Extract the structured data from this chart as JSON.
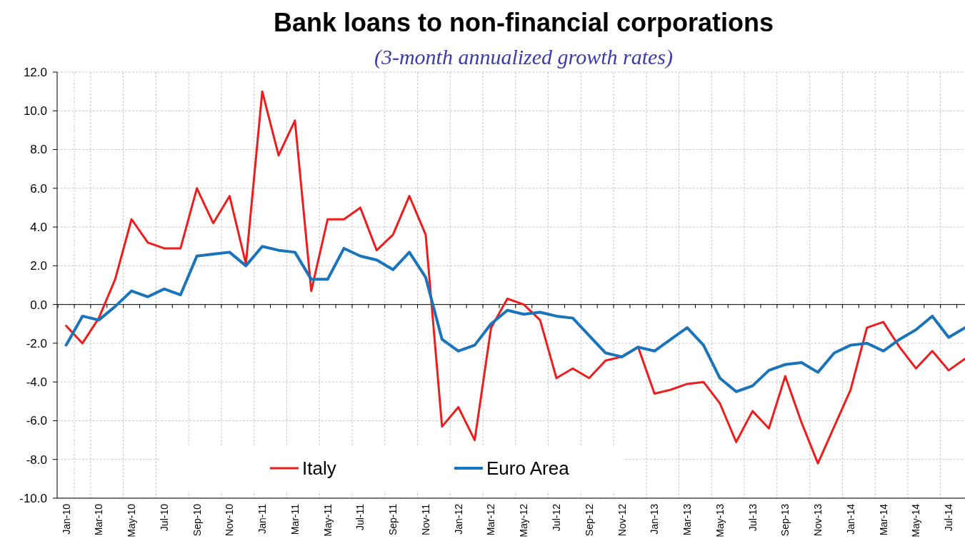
{
  "chart_data": {
    "type": "line",
    "title": "Bank loans to non-financial corporations",
    "subtitle": "(3-month annualized growth rates)",
    "categories": [
      "Jan-10",
      null,
      "Mar-10",
      null,
      "May-10",
      null,
      "Jul-10",
      null,
      "Sep-10",
      null,
      "Nov-10",
      null,
      "Jan-11",
      null,
      "Mar-11",
      null,
      "May-11",
      null,
      "Jul-11",
      null,
      "Sep-11",
      null,
      "Nov-11",
      null,
      "Jan-12",
      null,
      "Mar-12",
      null,
      "May-12",
      null,
      "Jul-12",
      null,
      "Sep-12",
      null,
      "Nov-12",
      null,
      "Jan-13",
      null,
      "Mar-13",
      null,
      "May-13",
      null,
      "Jul-13",
      null,
      "Sep-13",
      null,
      "Nov-13",
      null,
      "Jan-14",
      null,
      "Mar-14",
      null,
      "May-14",
      null,
      "Jul-14",
      null
    ],
    "series": [
      {
        "name": "Italy",
        "color": "#ee1c1c",
        "values": [
          -1.1,
          -2.0,
          -0.7,
          1.3,
          4.4,
          3.2,
          2.9,
          2.9,
          6.0,
          4.2,
          5.6,
          2.1,
          11.0,
          7.7,
          9.5,
          0.7,
          4.4,
          4.4,
          5.0,
          2.8,
          3.6,
          5.6,
          3.6,
          -6.3,
          -5.3,
          -7.0,
          -1.2,
          0.3,
          0.0,
          -0.8,
          -3.8,
          -3.3,
          -3.8,
          -2.9,
          -2.7,
          -2.2,
          -4.6,
          -4.4,
          -4.1,
          -4.0,
          -5.1,
          -7.1,
          -5.5,
          -6.4,
          -3.7,
          -6.1,
          -8.2,
          -6.3,
          -4.4,
          -1.2,
          -0.9,
          -2.2,
          -3.3,
          -2.4,
          -3.4,
          -2.8
        ]
      },
      {
        "name": "Euro Area",
        "color": "#1a74bc",
        "values": [
          -2.1,
          -0.6,
          -0.8,
          -0.1,
          0.7,
          0.4,
          0.8,
          0.5,
          2.5,
          2.6,
          2.7,
          2.0,
          3.0,
          2.8,
          2.7,
          1.3,
          1.3,
          2.9,
          2.5,
          2.3,
          1.8,
          2.7,
          1.4,
          -1.8,
          -2.4,
          -2.1,
          -1.0,
          -0.3,
          -0.5,
          -0.4,
          -0.6,
          -0.7,
          -1.6,
          -2.5,
          -2.7,
          -2.2,
          -2.4,
          -1.8,
          -1.2,
          -2.1,
          -3.8,
          -4.5,
          -4.2,
          -3.4,
          -3.1,
          -3.0,
          -3.5,
          -2.5,
          -2.1,
          -2.0,
          -2.4,
          -1.8,
          -1.3,
          -0.6,
          -1.7,
          -1.2
        ]
      }
    ],
    "ylim": [
      -10,
      12
    ],
    "yticks": [
      {
        "value": -10,
        "label": "-10.0"
      },
      {
        "value": -8,
        "label": "-8.0"
      },
      {
        "value": -6,
        "label": "-6.0"
      },
      {
        "value": -4,
        "label": "-4.0"
      },
      {
        "value": -2,
        "label": "-2.0"
      },
      {
        "value": 0,
        "label": "0.0"
      },
      {
        "value": 2,
        "label": "2.0"
      },
      {
        "value": 4,
        "label": "4.0"
      },
      {
        "value": 6,
        "label": "6.0"
      },
      {
        "value": 8,
        "label": "8.0"
      },
      {
        "value": 10,
        "label": "10.0"
      },
      {
        "value": 12,
        "label": "12.0"
      }
    ],
    "grid": true,
    "legend": "bottom",
    "marker": "none",
    "line_style": "solid"
  }
}
